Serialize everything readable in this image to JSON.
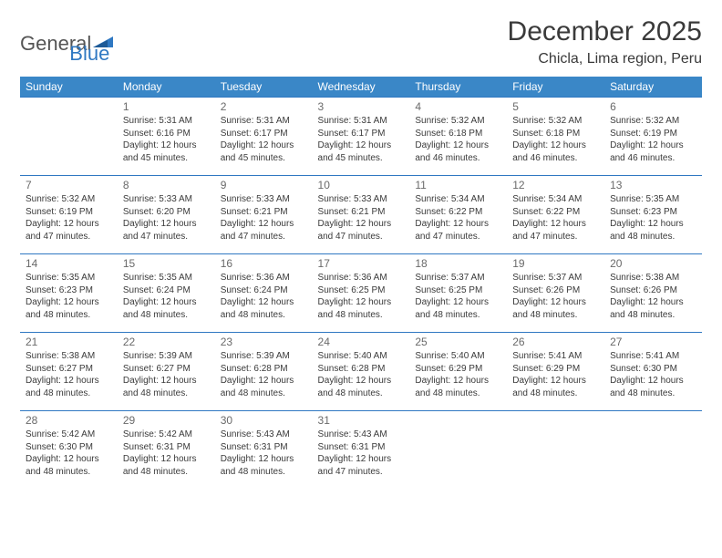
{
  "logo": {
    "word1": "General",
    "word2": "Blue",
    "text_color": "#555555",
    "blue_color": "#2f78c2"
  },
  "header": {
    "month_title": "December 2025",
    "location": "Chicla, Lima region, Peru"
  },
  "colors": {
    "header_bg": "#3a87c7",
    "header_text": "#ffffff",
    "row_border": "#2f78c2",
    "body_text": "#3a3a3a",
    "daynum_text": "#6a6a6a",
    "page_bg": "#ffffff"
  },
  "fonts": {
    "month_title_size": 30,
    "location_size": 16,
    "weekday_size": 12,
    "daynum_size": 12,
    "info_size": 10
  },
  "weekdays": [
    "Sunday",
    "Monday",
    "Tuesday",
    "Wednesday",
    "Thursday",
    "Friday",
    "Saturday"
  ],
  "weeks": [
    [
      {
        "day": "",
        "lines": []
      },
      {
        "day": "1",
        "lines": [
          "Sunrise: 5:31 AM",
          "Sunset: 6:16 PM",
          "Daylight: 12 hours and 45 minutes."
        ]
      },
      {
        "day": "2",
        "lines": [
          "Sunrise: 5:31 AM",
          "Sunset: 6:17 PM",
          "Daylight: 12 hours and 45 minutes."
        ]
      },
      {
        "day": "3",
        "lines": [
          "Sunrise: 5:31 AM",
          "Sunset: 6:17 PM",
          "Daylight: 12 hours and 45 minutes."
        ]
      },
      {
        "day": "4",
        "lines": [
          "Sunrise: 5:32 AM",
          "Sunset: 6:18 PM",
          "Daylight: 12 hours and 46 minutes."
        ]
      },
      {
        "day": "5",
        "lines": [
          "Sunrise: 5:32 AM",
          "Sunset: 6:18 PM",
          "Daylight: 12 hours and 46 minutes."
        ]
      },
      {
        "day": "6",
        "lines": [
          "Sunrise: 5:32 AM",
          "Sunset: 6:19 PM",
          "Daylight: 12 hours and 46 minutes."
        ]
      }
    ],
    [
      {
        "day": "7",
        "lines": [
          "Sunrise: 5:32 AM",
          "Sunset: 6:19 PM",
          "Daylight: 12 hours and 47 minutes."
        ]
      },
      {
        "day": "8",
        "lines": [
          "Sunrise: 5:33 AM",
          "Sunset: 6:20 PM",
          "Daylight: 12 hours and 47 minutes."
        ]
      },
      {
        "day": "9",
        "lines": [
          "Sunrise: 5:33 AM",
          "Sunset: 6:21 PM",
          "Daylight: 12 hours and 47 minutes."
        ]
      },
      {
        "day": "10",
        "lines": [
          "Sunrise: 5:33 AM",
          "Sunset: 6:21 PM",
          "Daylight: 12 hours and 47 minutes."
        ]
      },
      {
        "day": "11",
        "lines": [
          "Sunrise: 5:34 AM",
          "Sunset: 6:22 PM",
          "Daylight: 12 hours and 47 minutes."
        ]
      },
      {
        "day": "12",
        "lines": [
          "Sunrise: 5:34 AM",
          "Sunset: 6:22 PM",
          "Daylight: 12 hours and 47 minutes."
        ]
      },
      {
        "day": "13",
        "lines": [
          "Sunrise: 5:35 AM",
          "Sunset: 6:23 PM",
          "Daylight: 12 hours and 48 minutes."
        ]
      }
    ],
    [
      {
        "day": "14",
        "lines": [
          "Sunrise: 5:35 AM",
          "Sunset: 6:23 PM",
          "Daylight: 12 hours and 48 minutes."
        ]
      },
      {
        "day": "15",
        "lines": [
          "Sunrise: 5:35 AM",
          "Sunset: 6:24 PM",
          "Daylight: 12 hours and 48 minutes."
        ]
      },
      {
        "day": "16",
        "lines": [
          "Sunrise: 5:36 AM",
          "Sunset: 6:24 PM",
          "Daylight: 12 hours and 48 minutes."
        ]
      },
      {
        "day": "17",
        "lines": [
          "Sunrise: 5:36 AM",
          "Sunset: 6:25 PM",
          "Daylight: 12 hours and 48 minutes."
        ]
      },
      {
        "day": "18",
        "lines": [
          "Sunrise: 5:37 AM",
          "Sunset: 6:25 PM",
          "Daylight: 12 hours and 48 minutes."
        ]
      },
      {
        "day": "19",
        "lines": [
          "Sunrise: 5:37 AM",
          "Sunset: 6:26 PM",
          "Daylight: 12 hours and 48 minutes."
        ]
      },
      {
        "day": "20",
        "lines": [
          "Sunrise: 5:38 AM",
          "Sunset: 6:26 PM",
          "Daylight: 12 hours and 48 minutes."
        ]
      }
    ],
    [
      {
        "day": "21",
        "lines": [
          "Sunrise: 5:38 AM",
          "Sunset: 6:27 PM",
          "Daylight: 12 hours and 48 minutes."
        ]
      },
      {
        "day": "22",
        "lines": [
          "Sunrise: 5:39 AM",
          "Sunset: 6:27 PM",
          "Daylight: 12 hours and 48 minutes."
        ]
      },
      {
        "day": "23",
        "lines": [
          "Sunrise: 5:39 AM",
          "Sunset: 6:28 PM",
          "Daylight: 12 hours and 48 minutes."
        ]
      },
      {
        "day": "24",
        "lines": [
          "Sunrise: 5:40 AM",
          "Sunset: 6:28 PM",
          "Daylight: 12 hours and 48 minutes."
        ]
      },
      {
        "day": "25",
        "lines": [
          "Sunrise: 5:40 AM",
          "Sunset: 6:29 PM",
          "Daylight: 12 hours and 48 minutes."
        ]
      },
      {
        "day": "26",
        "lines": [
          "Sunrise: 5:41 AM",
          "Sunset: 6:29 PM",
          "Daylight: 12 hours and 48 minutes."
        ]
      },
      {
        "day": "27",
        "lines": [
          "Sunrise: 5:41 AM",
          "Sunset: 6:30 PM",
          "Daylight: 12 hours and 48 minutes."
        ]
      }
    ],
    [
      {
        "day": "28",
        "lines": [
          "Sunrise: 5:42 AM",
          "Sunset: 6:30 PM",
          "Daylight: 12 hours and 48 minutes."
        ]
      },
      {
        "day": "29",
        "lines": [
          "Sunrise: 5:42 AM",
          "Sunset: 6:31 PM",
          "Daylight: 12 hours and 48 minutes."
        ]
      },
      {
        "day": "30",
        "lines": [
          "Sunrise: 5:43 AM",
          "Sunset: 6:31 PM",
          "Daylight: 12 hours and 48 minutes."
        ]
      },
      {
        "day": "31",
        "lines": [
          "Sunrise: 5:43 AM",
          "Sunset: 6:31 PM",
          "Daylight: 12 hours and 47 minutes."
        ]
      },
      {
        "day": "",
        "lines": []
      },
      {
        "day": "",
        "lines": []
      },
      {
        "day": "",
        "lines": []
      }
    ]
  ]
}
